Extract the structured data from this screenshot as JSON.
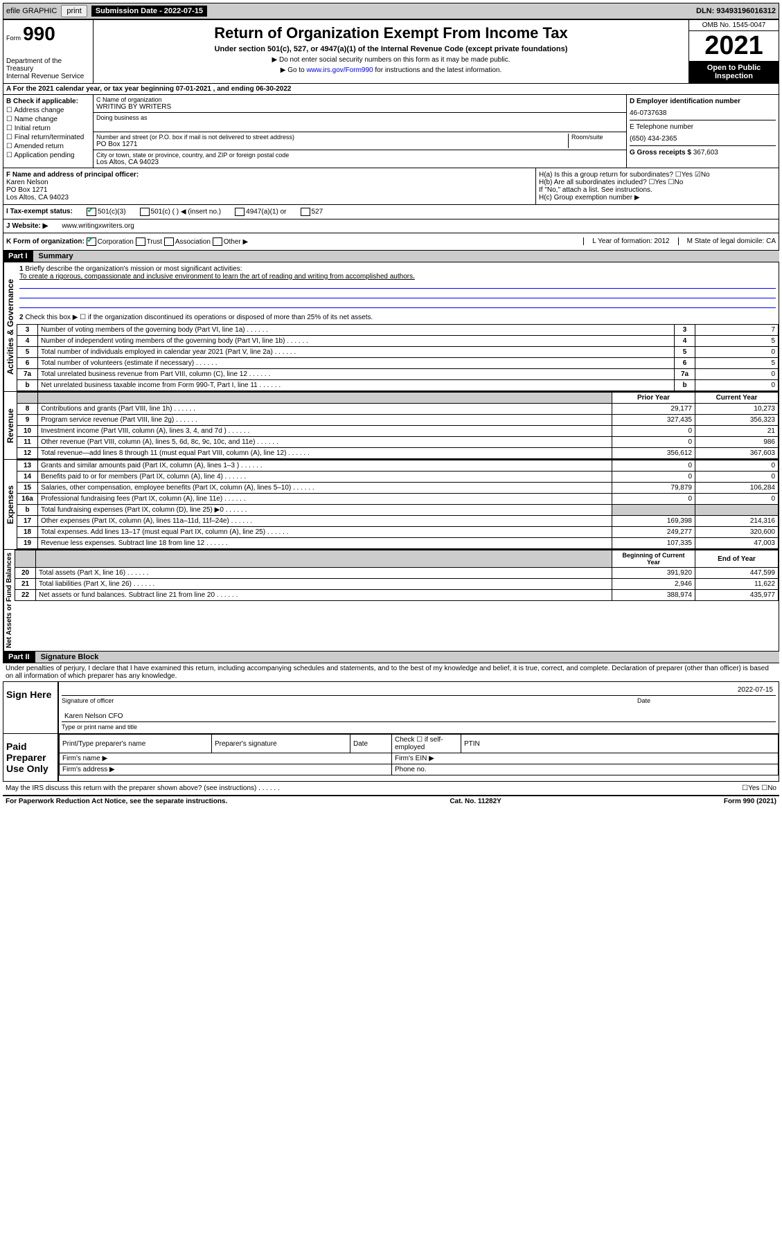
{
  "topbar": {
    "efile": "efile GRAPHIC",
    "print": "print",
    "subdate_label": "Submission Date - 2022-07-15",
    "dln": "DLN: 93493196016312"
  },
  "header": {
    "form_label": "Form",
    "form_num": "990",
    "title": "Return of Organization Exempt From Income Tax",
    "subtitle": "Under section 501(c), 527, or 4947(a)(1) of the Internal Revenue Code (except private foundations)",
    "note1": "▶ Do not enter social security numbers on this form as it may be made public.",
    "note2_pre": "▶ Go to ",
    "note2_link": "www.irs.gov/Form990",
    "note2_post": " for instructions and the latest information.",
    "dept": "Department of the Treasury\nInternal Revenue Service",
    "omb": "OMB No. 1545-0047",
    "year": "2021",
    "inspection": "Open to Public Inspection"
  },
  "tax_year": "For the 2021 calendar year, or tax year beginning 07-01-2021  , and ending 06-30-2022",
  "section_b": {
    "title": "B Check if applicable:",
    "items": [
      "Address change",
      "Name change",
      "Initial return",
      "Final return/terminated",
      "Amended return",
      "Application pending"
    ]
  },
  "section_c": {
    "name_label": "C Name of organization",
    "name": "WRITING BY WRITERS",
    "dba_label": "Doing business as",
    "addr_label": "Number and street (or P.O. box if mail is not delivered to street address)",
    "room_label": "Room/suite",
    "addr": "PO Box 1271",
    "city_label": "City or town, state or province, country, and ZIP or foreign postal code",
    "city": "Los Altos, CA  94023"
  },
  "section_d": {
    "ein_label": "D Employer identification number",
    "ein": "46-0737638",
    "phone_label": "E Telephone number",
    "phone": "(650) 434-2365",
    "gross_label": "G Gross receipts $",
    "gross": "367,603"
  },
  "section_f": {
    "label": "F  Name and address of principal officer:",
    "name": "Karen Nelson",
    "addr1": "PO Box 1271",
    "addr2": "Los Altos, CA  94023"
  },
  "section_h": {
    "ha": "H(a)  Is this a group return for subordinates?",
    "hb": "H(b)  Are all subordinates included?",
    "hb_note": "If \"No,\" attach a list. See instructions.",
    "hc": "H(c)  Group exemption number ▶",
    "yes": "Yes",
    "no": "No"
  },
  "section_i": {
    "label": "I  Tax-exempt status:",
    "opts": [
      "501(c)(3)",
      "501(c) (  ) ◀ (insert no.)",
      "4947(a)(1) or",
      "527"
    ]
  },
  "section_j": {
    "label": "J  Website: ▶",
    "val": "www.writingxwriters.org"
  },
  "section_k": {
    "label": "K Form of organization:",
    "opts": [
      "Corporation",
      "Trust",
      "Association",
      "Other ▶"
    ],
    "l": "L Year of formation: 2012",
    "m": "M State of legal domicile: CA"
  },
  "part1": {
    "header": "Part I",
    "title": "Summary"
  },
  "governance": {
    "label": "Activities & Governance",
    "line1": "Briefly describe the organization's mission or most significant activities:",
    "mission": "To create a rigorous, compassionate and inclusive environment to learn the art of reading and writing from accomplished authors.",
    "line2": "Check this box ▶ ☐  if the organization discontinued its operations or disposed of more than 25% of its net assets.",
    "rows": [
      {
        "n": "3",
        "t": "Number of voting members of the governing body (Part VI, line 1a)",
        "v": "7"
      },
      {
        "n": "4",
        "t": "Number of independent voting members of the governing body (Part VI, line 1b)",
        "v": "5"
      },
      {
        "n": "5",
        "t": "Total number of individuals employed in calendar year 2021 (Part V, line 2a)",
        "v": "0"
      },
      {
        "n": "6",
        "t": "Total number of volunteers (estimate if necessary)",
        "v": "5"
      },
      {
        "n": "7a",
        "t": "Total unrelated business revenue from Part VIII, column (C), line 12",
        "v": "0"
      },
      {
        "n": "b",
        "t": "Net unrelated business taxable income from Form 990-T, Part I, line 11",
        "v": "0"
      }
    ]
  },
  "revenue": {
    "label": "Revenue",
    "prior": "Prior Year",
    "current": "Current Year",
    "rows": [
      {
        "n": "8",
        "t": "Contributions and grants (Part VIII, line 1h)",
        "p": "29,177",
        "c": "10,273"
      },
      {
        "n": "9",
        "t": "Program service revenue (Part VIII, line 2g)",
        "p": "327,435",
        "c": "356,323"
      },
      {
        "n": "10",
        "t": "Investment income (Part VIII, column (A), lines 3, 4, and 7d )",
        "p": "0",
        "c": "21"
      },
      {
        "n": "11",
        "t": "Other revenue (Part VIII, column (A), lines 5, 6d, 8c, 9c, 10c, and 11e)",
        "p": "0",
        "c": "986"
      },
      {
        "n": "12",
        "t": "Total revenue—add lines 8 through 11 (must equal Part VIII, column (A), line 12)",
        "p": "356,612",
        "c": "367,603"
      }
    ]
  },
  "expenses": {
    "label": "Expenses",
    "rows": [
      {
        "n": "13",
        "t": "Grants and similar amounts paid (Part IX, column (A), lines 1–3 )",
        "p": "0",
        "c": "0"
      },
      {
        "n": "14",
        "t": "Benefits paid to or for members (Part IX, column (A), line 4)",
        "p": "0",
        "c": "0"
      },
      {
        "n": "15",
        "t": "Salaries, other compensation, employee benefits (Part IX, column (A), lines 5–10)",
        "p": "79,879",
        "c": "106,284"
      },
      {
        "n": "16a",
        "t": "Professional fundraising fees (Part IX, column (A), line 11e)",
        "p": "0",
        "c": "0"
      },
      {
        "n": "b",
        "t": "Total fundraising expenses (Part IX, column (D), line 25) ▶0",
        "p": "",
        "c": "",
        "grey": true
      },
      {
        "n": "17",
        "t": "Other expenses (Part IX, column (A), lines 11a–11d, 11f–24e)",
        "p": "169,398",
        "c": "214,316"
      },
      {
        "n": "18",
        "t": "Total expenses. Add lines 13–17 (must equal Part IX, column (A), line 25)",
        "p": "249,277",
        "c": "320,600"
      },
      {
        "n": "19",
        "t": "Revenue less expenses. Subtract line 18 from line 12",
        "p": "107,335",
        "c": "47,003"
      }
    ]
  },
  "assets": {
    "label": "Net Assets or Fund Balances",
    "begin": "Beginning of Current Year",
    "end": "End of Year",
    "rows": [
      {
        "n": "20",
        "t": "Total assets (Part X, line 16)",
        "p": "391,920",
        "c": "447,599"
      },
      {
        "n": "21",
        "t": "Total liabilities (Part X, line 26)",
        "p": "2,946",
        "c": "11,622"
      },
      {
        "n": "22",
        "t": "Net assets or fund balances. Subtract line 21 from line 20",
        "p": "388,974",
        "c": "435,977"
      }
    ]
  },
  "part2": {
    "header": "Part II",
    "title": "Signature Block",
    "decl": "Under penalties of perjury, I declare that I have examined this return, including accompanying schedules and statements, and to the best of my knowledge and belief, it is true, correct, and complete. Declaration of preparer (other than officer) is based on all information of which preparer has any knowledge."
  },
  "sign": {
    "label": "Sign Here",
    "sig_label": "Signature of officer",
    "date_label": "Date",
    "date": "2022-07-15",
    "name": "Karen Nelson CFO",
    "name_label": "Type or print name and title"
  },
  "preparer": {
    "label": "Paid Preparer Use Only",
    "cols": [
      "Print/Type preparer's name",
      "Preparer's signature",
      "Date",
      "Check ☐ if self-employed",
      "PTIN"
    ],
    "firm_name": "Firm's name  ▶",
    "firm_ein": "Firm's EIN ▶",
    "firm_addr": "Firm's address ▶",
    "phone": "Phone no."
  },
  "footer": {
    "discuss": "May the IRS discuss this return with the preparer shown above? (see instructions)",
    "yes": "Yes",
    "no": "No",
    "paperwork": "For Paperwork Reduction Act Notice, see the separate instructions.",
    "cat": "Cat. No. 11282Y",
    "form": "Form 990 (2021)"
  }
}
